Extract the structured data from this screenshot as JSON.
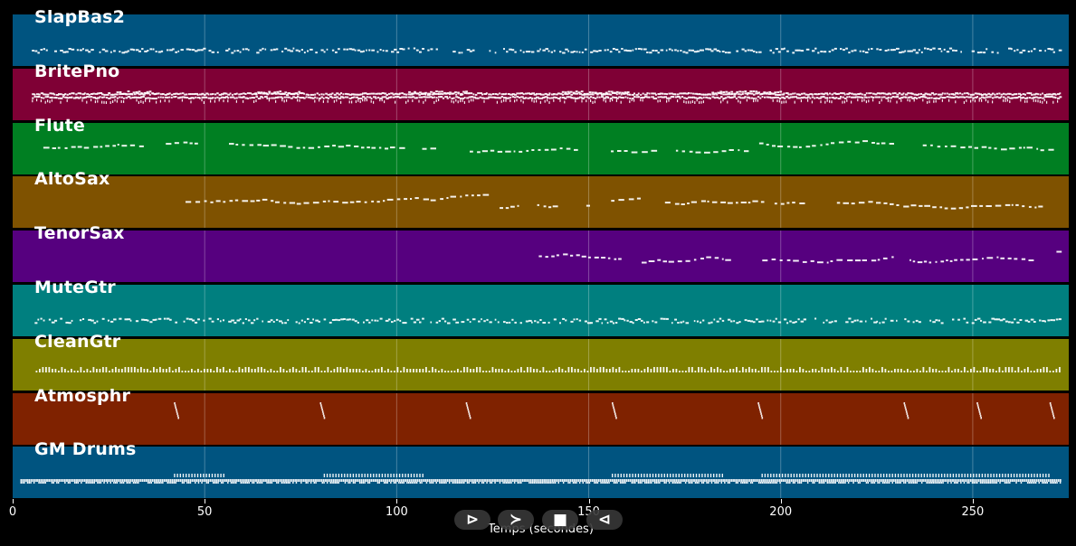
{
  "tracks": [
    {
      "name": "SlapBas2",
      "color": "#005480",
      "start": 5,
      "end": 273,
      "style": "dots"
    },
    {
      "name": "BritePno",
      "color": "#7f0035",
      "start": 5,
      "end": 273,
      "style": "dense"
    },
    {
      "name": "Flute",
      "color": "#007f22",
      "start": 8,
      "end": 271,
      "style": "melody"
    },
    {
      "name": "AltoSax",
      "color": "#7f5200",
      "start": 45,
      "end": 271,
      "style": "melody"
    },
    {
      "name": "TenorSax",
      "color": "#56007f",
      "start": 137,
      "end": 273,
      "style": "melody"
    },
    {
      "name": "MuteGtr",
      "color": "#007f7f",
      "start": 5,
      "end": 273,
      "style": "dots"
    },
    {
      "name": "CleanGtr",
      "color": "#7f7f00",
      "start": 6,
      "end": 273,
      "style": "chords"
    },
    {
      "name": "Atmosphr",
      "color": "#7f2200",
      "start": 41,
      "end": 270,
      "style": "sparse"
    },
    {
      "name": "GM Drums",
      "color": "#005480",
      "start": 2,
      "end": 273,
      "style": "drums"
    }
  ],
  "chart_data": {
    "type": "scatter",
    "xlabel": "Temps (secondes)",
    "xlim": [
      0,
      275
    ],
    "xticks": [
      0,
      50,
      100,
      150,
      200,
      250
    ],
    "grid": true,
    "series": [
      {
        "name": "SlapBas2",
        "x_range": [
          5,
          273
        ]
      },
      {
        "name": "BritePno",
        "x_range": [
          5,
          273
        ]
      },
      {
        "name": "Flute",
        "x_range": [
          8,
          271
        ]
      },
      {
        "name": "AltoSax",
        "x_range": [
          45,
          271
        ]
      },
      {
        "name": "TenorSax",
        "x_range": [
          137,
          273
        ]
      },
      {
        "name": "MuteGtr",
        "x_range": [
          5,
          273
        ]
      },
      {
        "name": "CleanGtr",
        "x_range": [
          6,
          273
        ]
      },
      {
        "name": "Atmosphr",
        "x_range": [
          41,
          270
        ],
        "note_times": [
          42,
          80,
          118,
          156,
          194,
          232,
          251,
          270
        ]
      },
      {
        "name": "GM Drums",
        "x_range": [
          2,
          273
        ]
      }
    ]
  },
  "controls": [
    {
      "name": "play-button",
      "icon": "play-icon",
      "glyph": "⊳"
    },
    {
      "name": "forward-button",
      "icon": "chevron-right-icon",
      "glyph": "≻"
    },
    {
      "name": "stop-button",
      "icon": "stop-icon",
      "glyph": "■"
    },
    {
      "name": "rewind-button",
      "icon": "rewind-icon",
      "glyph": "⊲"
    }
  ]
}
